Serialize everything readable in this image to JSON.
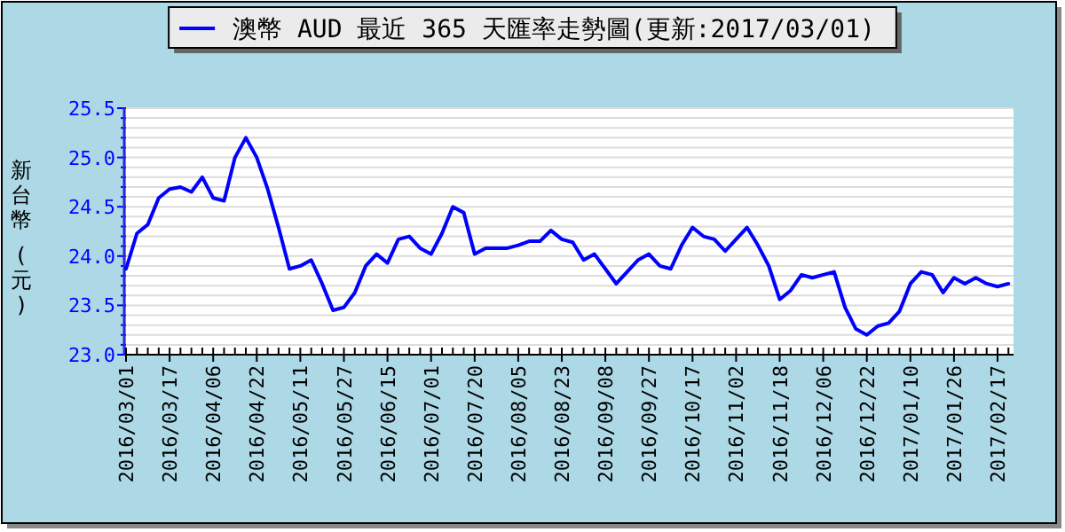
{
  "chart_data": {
    "type": "line",
    "ylabel": "新台幣 (元)",
    "categories": [
      "2016/03/01",
      null,
      null,
      null,
      "2016/03/17",
      null,
      null,
      null,
      "2016/04/06",
      null,
      null,
      null,
      "2016/04/22",
      null,
      null,
      null,
      "2016/05/11",
      null,
      null,
      null,
      "2016/05/27",
      null,
      null,
      null,
      "2016/06/15",
      null,
      null,
      null,
      "2016/07/01",
      null,
      null,
      null,
      "2016/07/20",
      null,
      null,
      null,
      "2016/08/05",
      null,
      null,
      null,
      "2016/08/23",
      null,
      null,
      null,
      "2016/09/08",
      null,
      null,
      null,
      "2016/09/27",
      null,
      null,
      null,
      "2016/10/17",
      null,
      null,
      null,
      "2016/11/02",
      null,
      null,
      null,
      "2016/11/18",
      null,
      null,
      null,
      "2016/12/06",
      null,
      null,
      null,
      "2016/12/22",
      null,
      null,
      null,
      "2017/01/10",
      null,
      null,
      null,
      "2017/01/26",
      null,
      null,
      null,
      "2017/02/17",
      null
    ],
    "series": [
      {
        "name": "澳幣 AUD 最近 365 天匯率走勢圖(更新:2017/03/01)",
        "color": "#0000ff",
        "values": [
          23.87,
          24.23,
          24.32,
          24.59,
          24.68,
          24.7,
          24.65,
          24.8,
          24.59,
          24.56,
          25.0,
          25.2,
          25.0,
          24.68,
          24.29,
          23.87,
          23.9,
          23.96,
          23.72,
          23.45,
          23.48,
          23.63,
          23.9,
          24.02,
          23.93,
          24.17,
          24.2,
          24.08,
          24.02,
          24.23,
          24.5,
          24.44,
          24.02,
          24.08,
          24.08,
          24.08,
          24.11,
          24.15,
          24.15,
          24.26,
          24.17,
          24.14,
          23.96,
          24.02,
          23.87,
          23.72,
          23.84,
          23.96,
          24.02,
          23.9,
          23.87,
          24.11,
          24.29,
          24.2,
          24.17,
          24.05,
          24.17,
          24.29,
          24.11,
          23.9,
          23.56,
          23.65,
          23.81,
          23.78,
          23.81,
          23.84,
          23.48,
          23.26,
          23.2,
          23.29,
          23.32,
          23.44,
          23.72,
          23.84,
          23.81,
          23.63,
          23.78,
          23.72,
          23.78,
          23.72,
          23.69,
          23.72
        ]
      }
    ],
    "ylim": [
      23.0,
      25.5
    ],
    "yticks": [
      {
        "value": 23.0,
        "label": "23.0"
      },
      {
        "value": 23.1,
        "label": null
      },
      {
        "value": 23.2,
        "label": null
      },
      {
        "value": 23.3,
        "label": null
      },
      {
        "value": 23.4,
        "label": null
      },
      {
        "value": 23.5,
        "label": "23.5"
      },
      {
        "value": 23.6,
        "label": null
      },
      {
        "value": 23.7,
        "label": null
      },
      {
        "value": 23.8,
        "label": null
      },
      {
        "value": 23.9,
        "label": null
      },
      {
        "value": 24.0,
        "label": "24.0"
      },
      {
        "value": 24.1,
        "label": null
      },
      {
        "value": 24.2,
        "label": null
      },
      {
        "value": 24.3,
        "label": null
      },
      {
        "value": 24.4,
        "label": null
      },
      {
        "value": 24.5,
        "label": "24.5"
      },
      {
        "value": 24.6,
        "label": null
      },
      {
        "value": 24.7,
        "label": null
      },
      {
        "value": 24.8,
        "label": null
      },
      {
        "value": 24.9,
        "label": null
      },
      {
        "value": 25.0,
        "label": "25.0"
      },
      {
        "value": 25.1,
        "label": null
      },
      {
        "value": 25.2,
        "label": null
      },
      {
        "value": 25.3,
        "label": null
      },
      {
        "value": 25.4,
        "label": null
      },
      {
        "value": 25.5,
        "label": "25.5"
      }
    ],
    "grid": "y",
    "legend": "top"
  }
}
